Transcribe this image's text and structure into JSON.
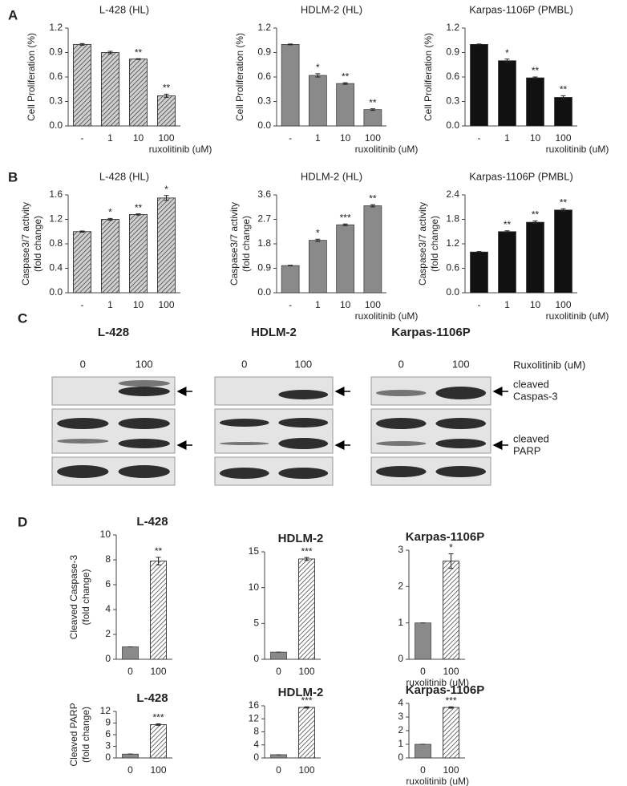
{
  "panel_labels": [
    "A",
    "B",
    "C",
    "D"
  ],
  "chart_data": [
    {
      "type": "bar",
      "title": "L-428 (HL)",
      "ylabel": [
        "Cell Proliferation (%)"
      ],
      "xlabel": "ruxolitinib (uM)",
      "categories": [
        "-",
        "1",
        "10",
        "100"
      ],
      "values": [
        1.0,
        0.9,
        0.82,
        0.37
      ],
      "errors": [
        0.01,
        0.015,
        0.005,
        0.02
      ],
      "annotations": [
        null,
        null,
        "**",
        "**"
      ],
      "color": "#d0d0d0",
      "hatch": true,
      "ylim": [
        0,
        1.2
      ],
      "yticks": [
        {
          "value": 0,
          "label": "0.0"
        },
        0.3,
        0.6,
        0.9,
        1.2
      ]
    },
    {
      "type": "bar",
      "title": "HDLM-2 (HL)",
      "ylabel": [
        "Cell Proliferation (%)"
      ],
      "xlabel": "ruxolitinib (uM)",
      "categories": [
        "-",
        "1",
        "10",
        "100"
      ],
      "values": [
        1.0,
        0.62,
        0.52,
        0.2
      ],
      "errors": [
        0.005,
        0.02,
        0.01,
        0.01
      ],
      "annotations": [
        null,
        "*",
        "**",
        "**"
      ],
      "color": "#8a8a8a",
      "hatch": false,
      "ylim": [
        0,
        1.2
      ],
      "yticks": [
        {
          "value": 0,
          "label": "0.0"
        },
        0.3,
        0.6,
        0.9,
        1.2
      ]
    },
    {
      "type": "bar",
      "title": "Karpas-1106P (PMBL)",
      "ylabel": [
        "Cell Proliferation (%)"
      ],
      "xlabel": "ruxolitinib (uM)",
      "categories": [
        "-",
        "1",
        "10",
        "100"
      ],
      "values": [
        1.0,
        0.8,
        0.59,
        0.35
      ],
      "errors": [
        0.005,
        0.02,
        0.01,
        0.02
      ],
      "annotations": [
        null,
        "*",
        "**",
        "**"
      ],
      "color": "#111111",
      "hatch": false,
      "ylim": [
        0,
        1.2
      ],
      "yticks": [
        {
          "value": 0,
          "label": "0.0"
        },
        0.3,
        0.6,
        0.9,
        1.2
      ]
    },
    {
      "type": "bar",
      "title": "L-428 (HL)",
      "ylabel": [
        "Caspase3/7 activity",
        "(fold change)"
      ],
      "categories": [
        "-",
        "1",
        "10",
        "100"
      ],
      "values": [
        1.0,
        1.2,
        1.28,
        1.55
      ],
      "errors": [
        0.01,
        0.015,
        0.01,
        0.04
      ],
      "annotations": [
        null,
        "*",
        "**",
        "*"
      ],
      "color": "#d0d0d0",
      "hatch": true,
      "ylim": [
        0,
        1.6
      ],
      "yticks": [
        {
          "value": 0,
          "label": "0.0"
        },
        0.4,
        0.8,
        1.2,
        1.6
      ]
    },
    {
      "type": "bar",
      "title": "HDLM-2 (HL)",
      "ylabel": [
        "Caspase3/7 activity",
        "(fold change)"
      ],
      "xlabel": "ruxolitinib (uM)",
      "categories": [
        "-",
        "1",
        "10",
        "100"
      ],
      "values": [
        1.0,
        1.93,
        2.5,
        3.2
      ],
      "errors": [
        0.01,
        0.04,
        0.03,
        0.04
      ],
      "annotations": [
        null,
        "*",
        "***",
        "**"
      ],
      "color": "#8a8a8a",
      "hatch": false,
      "ylim": [
        0,
        3.6
      ],
      "yticks": [
        {
          "value": 0,
          "label": "0.0"
        },
        0.9,
        1.8,
        2.7,
        3.6
      ]
    },
    {
      "type": "bar",
      "title": "Karpas-1106P (PMBL)",
      "ylabel": [
        "Caspase3/7 activity",
        "(fold change)"
      ],
      "xlabel": "ruxolitinib (uM)",
      "categories": [
        "-",
        "1",
        "10",
        "100"
      ],
      "values": [
        1.0,
        1.5,
        1.73,
        2.03
      ],
      "errors": [
        0.01,
        0.02,
        0.03,
        0.03
      ],
      "annotations": [
        null,
        "**",
        "**",
        "**"
      ],
      "color": "#111111",
      "hatch": false,
      "ylim": [
        0,
        2.4
      ],
      "yticks": [
        {
          "value": 0,
          "label": "0.0"
        },
        0.6,
        1.2,
        1.8,
        2.4
      ]
    },
    {
      "type": "bar",
      "title": "L-428",
      "ylabel": [
        "Cleaved Caspase-3",
        "(fold change)"
      ],
      "categories": [
        "0",
        "100"
      ],
      "values": [
        1,
        7.9
      ],
      "errors": [
        0,
        0.3
      ],
      "annotations": [
        null,
        "**"
      ],
      "colors": [
        "#8a8a8a",
        "#ffffff"
      ],
      "hatch": [
        false,
        true
      ],
      "ylim": [
        0,
        10
      ],
      "yticks": [
        0,
        2,
        4,
        6,
        8,
        10
      ]
    },
    {
      "type": "bar",
      "title": "HDLM-2",
      "categories": [
        "0",
        "100"
      ],
      "values": [
        1,
        14
      ],
      "errors": [
        0,
        0.2
      ],
      "annotations": [
        null,
        "***"
      ],
      "colors": [
        "#8a8a8a",
        "#ffffff"
      ],
      "hatch": [
        false,
        true
      ],
      "ylim": [
        0,
        15
      ],
      "yticks": [
        0,
        5,
        10,
        15
      ]
    },
    {
      "type": "bar",
      "title": "Karpas-1106P",
      "xlabel": "ruxolitinib (uM)",
      "categories": [
        "0",
        "100"
      ],
      "values": [
        1,
        2.7
      ],
      "errors": [
        0,
        0.2
      ],
      "annotations": [
        null,
        "*"
      ],
      "colors": [
        "#8a8a8a",
        "#ffffff"
      ],
      "hatch": [
        false,
        true
      ],
      "ylim": [
        0,
        3
      ],
      "yticks": [
        0,
        1,
        2,
        3
      ]
    },
    {
      "type": "bar",
      "title": "L-428",
      "ylabel": [
        "Cleaved PARP",
        "(fold change)"
      ],
      "categories": [
        "0",
        "100"
      ],
      "values": [
        1,
        8.6
      ],
      "errors": [
        0,
        0.2
      ],
      "annotations": [
        null,
        "***"
      ],
      "colors": [
        "#8a8a8a",
        "#ffffff"
      ],
      "hatch": [
        false,
        true
      ],
      "ylim": [
        0,
        12
      ],
      "yticks": [
        0,
        3,
        6,
        9,
        12
      ]
    },
    {
      "type": "bar",
      "title": "HDLM-2",
      "categories": [
        "0",
        "100"
      ],
      "values": [
        1,
        15.5
      ],
      "errors": [
        0,
        0.2
      ],
      "annotations": [
        null,
        "***"
      ],
      "colors": [
        "#8a8a8a",
        "#ffffff"
      ],
      "hatch": [
        false,
        true
      ],
      "ylim": [
        0,
        16
      ],
      "yticks": [
        0,
        4,
        8,
        12,
        16
      ]
    },
    {
      "type": "bar",
      "title": "Karpas-1106P",
      "xlabel": "ruxolitinib (uM)",
      "categories": [
        "0",
        "100"
      ],
      "values": [
        1,
        3.7
      ],
      "errors": [
        0,
        0.05
      ],
      "annotations": [
        null,
        "***"
      ],
      "colors": [
        "#8a8a8a",
        "#ffffff"
      ],
      "hatch": [
        false,
        true
      ],
      "ylim": [
        0,
        4
      ],
      "yticks": [
        0,
        1,
        2,
        3,
        4
      ]
    }
  ],
  "blots": {
    "groups": [
      {
        "name": "L-428",
        "lanes": [
          "0",
          "100"
        ]
      },
      {
        "name": "HDLM-2",
        "lanes": [
          "0",
          "100"
        ]
      },
      {
        "name": "Karpas-1106P",
        "lanes": [
          "0",
          "100"
        ]
      }
    ],
    "treatment": "Ruxolitinib (uM)",
    "band_labels": [
      [
        "cleaved",
        "Caspas-3"
      ],
      [
        "cleaved",
        "PARP"
      ]
    ]
  }
}
